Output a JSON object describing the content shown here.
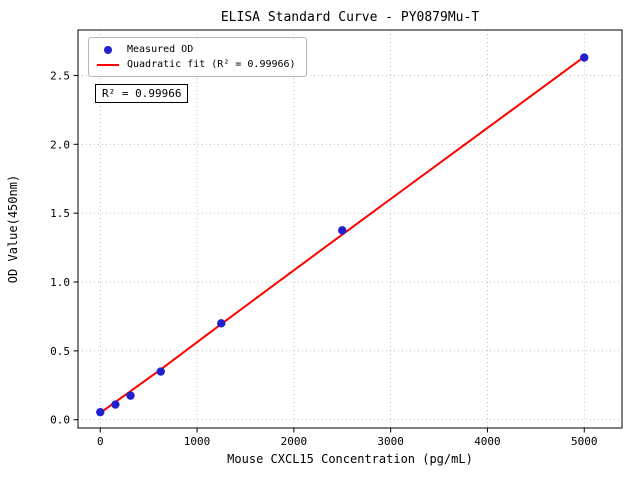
{
  "figure": {
    "title": "ELISA Standard Curve - PY0879Mu-T",
    "xlabel": "Mouse CXCL15 Concentration (pg/mL)",
    "ylabel": "OD Value(450nm)",
    "annotation": "R² = 0.99966",
    "legend": {
      "items": [
        {
          "label": "Measured OD",
          "marker": "dot",
          "color": "#2020cc"
        },
        {
          "label": "Quadratic fit (R² = 0.99966)",
          "marker": "line",
          "color": "#ff0000"
        }
      ]
    }
  },
  "chart_data": {
    "type": "scatter",
    "title": "ELISA Standard Curve - PY0879Mu-T",
    "xlabel": "Mouse CXCL15 Concentration (pg/mL)",
    "ylabel": "OD Value(450nm)",
    "series": [
      {
        "name": "Measured OD",
        "type": "scatter",
        "color": "#2020cc",
        "x": [
          0,
          156.25,
          312.5,
          625,
          1250,
          2500,
          5000
        ],
        "y": [
          0.055,
          0.11,
          0.175,
          0.35,
          0.7,
          1.375,
          2.63
        ]
      },
      {
        "name": "Quadratic fit",
        "type": "line",
        "color": "#ff0000",
        "x": [
          0,
          625,
          1250,
          2500,
          3750,
          5000
        ],
        "y": [
          0.05,
          0.365,
          0.695,
          1.345,
          1.99,
          2.635
        ]
      }
    ],
    "r_squared": 0.99966,
    "x_ticks": [
      0,
      1000,
      2000,
      3000,
      4000,
      5000
    ],
    "x_tick_labels": [
      "0",
      "1000",
      "2000",
      "3000",
      "4000",
      "5000"
    ],
    "y_ticks": [
      0.0,
      0.5,
      1.0,
      1.5,
      2.0,
      2.5
    ],
    "y_tick_labels": [
      "0.0",
      "0.5",
      "1.0",
      "1.5",
      "2.0",
      "2.5"
    ],
    "xlim": [
      -230,
      5390
    ],
    "ylim": [
      -0.06,
      2.83
    ],
    "grid": true,
    "grid_style": "dotted",
    "legend_position": "upper left"
  }
}
